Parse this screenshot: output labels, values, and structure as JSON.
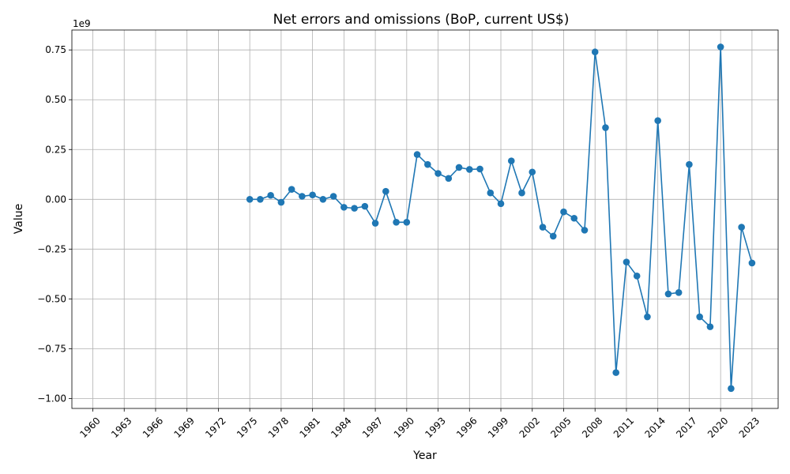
{
  "chart_data": {
    "type": "line",
    "title": "Net errors and omissions (BoP, current US$)",
    "xlabel": "Year",
    "ylabel": "Value",
    "y_scale_label": "1e9",
    "xlim": [
      1958,
      2025.5
    ],
    "ylim": [
      -1.05,
      0.85
    ],
    "grid": true,
    "line_color": "#1f77b4",
    "marker": "circle",
    "x_ticks": [
      1960,
      1963,
      1966,
      1969,
      1972,
      1975,
      1978,
      1981,
      1984,
      1987,
      1990,
      1993,
      1996,
      1999,
      2002,
      2005,
      2008,
      2011,
      2014,
      2017,
      2020,
      2023
    ],
    "y_ticks": [
      -1.0,
      -0.75,
      -0.5,
      -0.25,
      0.0,
      0.25,
      0.5,
      0.75
    ],
    "y_tick_labels": [
      "−1.00",
      "−0.75",
      "−0.50",
      "−0.25",
      "0.00",
      "0.25",
      "0.50",
      "0.75"
    ],
    "x": [
      1975,
      1976,
      1977,
      1978,
      1979,
      1980,
      1981,
      1982,
      1983,
      1984,
      1985,
      1986,
      1987,
      1988,
      1989,
      1990,
      1991,
      1992,
      1993,
      1994,
      1995,
      1996,
      1997,
      1998,
      1999,
      2000,
      2001,
      2002,
      2003,
      2004,
      2005,
      2006,
      2007,
      2008,
      2009,
      2010,
      2011,
      2012,
      2013,
      2014,
      2015,
      2016,
      2017,
      2018,
      2019,
      2020,
      2021,
      2022,
      2023
    ],
    "values": [
      0.0,
      0.0,
      0.02,
      -0.015,
      0.05,
      0.015,
      0.022,
      0.0,
      0.015,
      -0.04,
      -0.045,
      -0.035,
      -0.12,
      0.04,
      -0.115,
      -0.115,
      0.225,
      0.175,
      0.13,
      0.105,
      0.16,
      0.15,
      0.152,
      0.032,
      -0.022,
      0.193,
      0.032,
      0.137,
      -0.14,
      -0.185,
      -0.063,
      -0.095,
      -0.155,
      0.74,
      0.36,
      -0.87,
      -0.315,
      -0.385,
      -0.59,
      0.395,
      -0.475,
      -0.468,
      0.175,
      -0.59,
      -0.64,
      0.765,
      -0.95,
      -0.14,
      -0.32
    ]
  }
}
